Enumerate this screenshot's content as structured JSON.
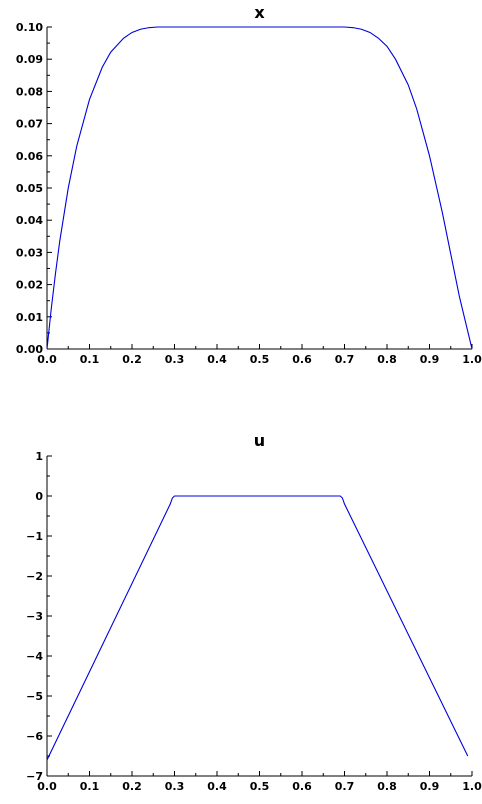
{
  "chart_data": [
    {
      "type": "line",
      "title": "x",
      "xlabel": "",
      "ylabel": "",
      "xlim": [
        0.0,
        1.0
      ],
      "ylim": [
        0.0,
        0.1
      ],
      "x_ticks": [
        "0.0",
        "0.1",
        "0.2",
        "0.3",
        "0.4",
        "0.5",
        "0.6",
        "0.7",
        "0.8",
        "0.9",
        "1.0"
      ],
      "y_ticks": [
        "0.00",
        "0.01",
        "0.02",
        "0.03",
        "0.04",
        "0.05",
        "0.06",
        "0.07",
        "0.08",
        "0.09",
        "0.10"
      ],
      "grid": false,
      "color": "#0000dd",
      "series": [
        {
          "x": [
            0.0,
            0.01,
            0.02,
            0.03,
            0.05,
            0.07,
            0.1,
            0.13,
            0.15,
            0.18,
            0.2,
            0.22,
            0.24,
            0.26,
            0.28,
            0.3,
            0.35,
            0.4,
            0.5,
            0.6,
            0.65,
            0.7,
            0.72,
            0.74,
            0.76,
            0.78,
            0.8,
            0.82,
            0.85,
            0.87,
            0.9,
            0.93,
            0.95,
            0.97,
            0.98,
            0.99,
            1.0
          ],
          "y": [
            0.0,
            0.0125,
            0.0235,
            0.0335,
            0.05,
            0.063,
            0.0775,
            0.0875,
            0.0922,
            0.0965,
            0.0983,
            0.0993,
            0.0998,
            0.1,
            0.1,
            0.1,
            0.1,
            0.1,
            0.1,
            0.1,
            0.1,
            0.1,
            0.0998,
            0.0993,
            0.0983,
            0.0965,
            0.094,
            0.09,
            0.082,
            0.0745,
            0.06,
            0.0425,
            0.0295,
            0.0165,
            0.011,
            0.0055,
            0.0
          ]
        }
      ]
    },
    {
      "type": "line",
      "title": "u",
      "xlabel": "",
      "ylabel": "",
      "xlim": [
        0.0,
        1.0
      ],
      "ylim": [
        -7,
        1
      ],
      "x_ticks": [
        "0.0",
        "0.1",
        "0.2",
        "0.3",
        "0.4",
        "0.5",
        "0.6",
        "0.7",
        "0.8",
        "0.9",
        "1.0"
      ],
      "y_ticks": [
        "1",
        "0",
        "−1",
        "−2",
        "−3",
        "−4",
        "−5",
        "−6",
        "−7"
      ],
      "grid": false,
      "color": "#0000dd",
      "series": [
        {
          "x": [
            0.0,
            0.29,
            0.295,
            0.3,
            0.69,
            0.695,
            0.7,
            0.99
          ],
          "y": [
            -6.6,
            -0.2,
            -0.05,
            0.0,
            0.0,
            -0.05,
            -0.2,
            -6.5
          ]
        }
      ]
    }
  ]
}
